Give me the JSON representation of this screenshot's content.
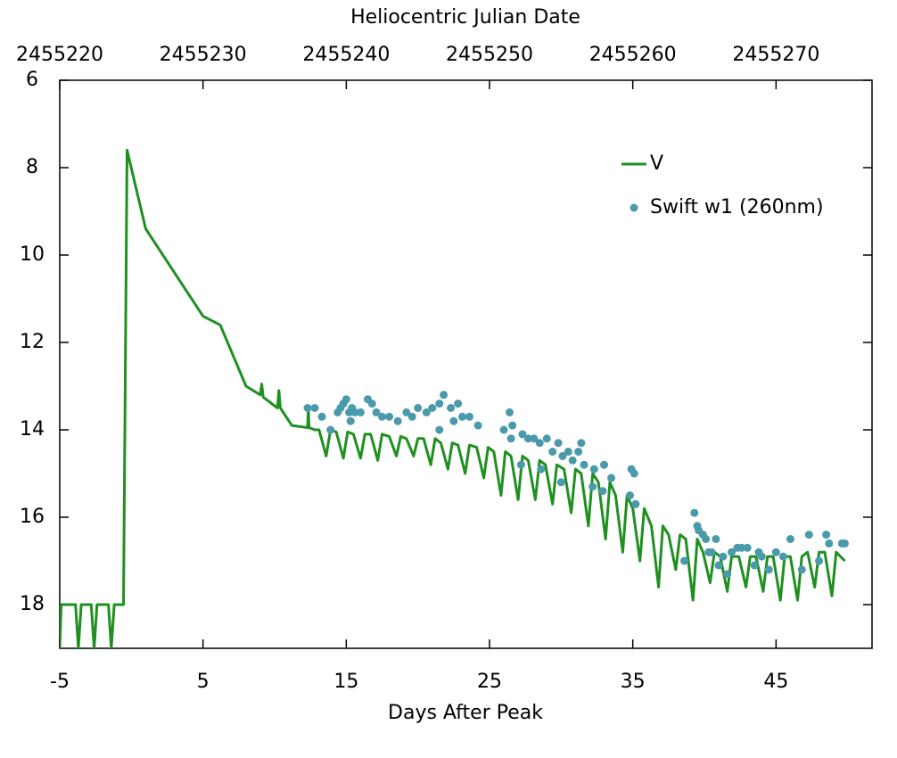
{
  "chart_data": {
    "type": "line",
    "xlabel": "Days After Peak",
    "x2label": "Heliocentric Julian Date",
    "xlim": [
      -5,
      51.7
    ],
    "xticks": [
      -5,
      5,
      15,
      25,
      35,
      45
    ],
    "x2lim": [
      2455220,
      2455276.7
    ],
    "x2ticks": [
      2455220,
      2455230,
      2455240,
      2455250,
      2455260,
      2455270
    ],
    "ylim": [
      6,
      19
    ],
    "yticks": [
      6,
      8,
      10,
      12,
      14,
      16,
      18
    ],
    "y_inverted": true,
    "legend": "upper right",
    "series": [
      {
        "name": "V",
        "type": "line",
        "color": "#1f9020",
        "x": [
          -5,
          -4.9,
          -3.9,
          -3.7,
          -3.5,
          -2.8,
          -2.6,
          -2.4,
          -1.6,
          -1.4,
          -1.2,
          -0.55,
          -0.3,
          1.0,
          5.0,
          6.2,
          8.0,
          9.0,
          9.1,
          9.2,
          10.2,
          10.3,
          10.4,
          11.2,
          12.3,
          12.35,
          12.4,
          12.8,
          13.1,
          13.6,
          13.9,
          14.3,
          14.8,
          15.1,
          15.5,
          16.0,
          16.3,
          16.7,
          17.2,
          17.5,
          18.0,
          18.5,
          18.8,
          19.2,
          19.7,
          20.0,
          20.4,
          20.9,
          21.2,
          21.6,
          22.1,
          22.4,
          22.8,
          23.3,
          23.6,
          24.1,
          24.6,
          24.9,
          25.3,
          25.8,
          26.1,
          26.5,
          27.0,
          27.3,
          27.7,
          28.2,
          28.5,
          28.9,
          29.4,
          29.7,
          30.2,
          30.7,
          31.0,
          31.4,
          31.9,
          32.2,
          32.6,
          33.1,
          33.4,
          33.8,
          34.3,
          34.6,
          35.0,
          35.5,
          35.8,
          36.3,
          36.8,
          37.1,
          37.5,
          38.0,
          38.3,
          38.7,
          39.2,
          39.5,
          39.9,
          40.4,
          40.7,
          41.1,
          41.6,
          41.9,
          42.4,
          42.9,
          43.2,
          43.6,
          44.1,
          44.4,
          44.8,
          45.3,
          45.6,
          46.0,
          46.5,
          46.8,
          47.2,
          47.7,
          48.0,
          48.4,
          48.9,
          49.2,
          49.8
        ],
        "values": [
          19,
          18,
          18,
          19,
          18,
          18,
          19,
          18,
          18,
          19,
          18,
          18,
          7.6,
          9.4,
          11.4,
          11.6,
          13.0,
          13.2,
          12.95,
          13.25,
          13.5,
          13.1,
          13.5,
          13.9,
          13.95,
          13.5,
          13.95,
          14.0,
          14.0,
          14.6,
          14.0,
          14.05,
          14.65,
          14.05,
          14.1,
          14.65,
          14.1,
          14.1,
          14.7,
          14.1,
          14.15,
          14.6,
          14.15,
          14.2,
          14.6,
          14.2,
          14.2,
          14.8,
          14.2,
          14.3,
          14.9,
          14.3,
          14.35,
          15.0,
          14.35,
          14.4,
          15.1,
          14.4,
          14.5,
          15.5,
          14.5,
          14.6,
          15.6,
          14.6,
          14.7,
          15.6,
          14.7,
          14.8,
          15.7,
          14.8,
          14.9,
          15.9,
          14.9,
          15.0,
          16.2,
          15.0,
          15.2,
          16.5,
          15.2,
          15.5,
          16.8,
          15.5,
          15.8,
          17.0,
          15.8,
          16.2,
          17.6,
          16.2,
          16.4,
          17.2,
          16.4,
          16.5,
          17.9,
          16.5,
          16.8,
          17.5,
          16.8,
          16.9,
          17.7,
          16.9,
          16.9,
          17.6,
          16.9,
          16.9,
          17.7,
          16.9,
          16.9,
          17.9,
          16.9,
          16.9,
          17.9,
          16.9,
          16.8,
          17.6,
          16.8,
          16.8,
          17.8,
          16.8,
          17.0
        ]
      },
      {
        "name": "Swift w1 (260nm)",
        "type": "scatter",
        "color": "#4a9aab",
        "x": [
          12.3,
          12.8,
          13.3,
          13.9,
          14.4,
          14.6,
          14.8,
          15.0,
          15.2,
          15.4,
          15.6,
          15.3,
          16.0,
          16.5,
          16.8,
          17.1,
          17.5,
          18.0,
          18.6,
          19.2,
          19.6,
          20.0,
          20.6,
          21.0,
          21.5,
          21.8,
          22.3,
          22.8,
          23.1,
          23.6,
          21.5,
          22.5,
          26.4,
          26.6,
          26.5,
          27.3,
          27.7,
          28.1,
          28.5,
          29.0,
          29.4,
          29.8,
          30.1,
          30.5,
          30.8,
          31.2,
          31.4,
          31.6,
          32.3,
          33.0,
          33.5,
          27.2,
          28.6,
          30.0,
          32.2,
          32.9,
          34.9,
          35.1,
          34.8,
          35.2,
          39.3,
          39.6,
          39.9,
          40.1,
          40.3,
          39.5,
          40.5,
          40.8,
          41.0,
          41.3,
          41.6,
          41.9,
          42.3,
          42.6,
          43.0,
          43.5,
          43.8,
          44.0,
          44.5,
          45.0,
          45.5,
          46.0,
          46.8,
          47.3,
          48.0,
          48.5,
          48.7,
          49.6,
          49.8,
          38.6,
          26.0,
          24.2
        ],
        "values": [
          13.5,
          13.5,
          13.7,
          14.0,
          13.6,
          13.5,
          13.4,
          13.3,
          13.6,
          13.5,
          13.6,
          13.8,
          13.6,
          13.3,
          13.4,
          13.6,
          13.7,
          13.7,
          13.8,
          13.6,
          13.7,
          13.5,
          13.6,
          13.5,
          13.4,
          13.2,
          13.5,
          13.4,
          13.7,
          13.7,
          14.0,
          13.8,
          13.6,
          13.9,
          14.2,
          14.1,
          14.2,
          14.2,
          14.3,
          14.2,
          14.5,
          14.3,
          14.6,
          14.5,
          14.7,
          14.5,
          14.3,
          14.8,
          14.9,
          14.8,
          15.1,
          14.8,
          14.9,
          15.2,
          15.3,
          15.4,
          14.9,
          15.0,
          15.5,
          15.7,
          15.9,
          16.3,
          16.4,
          16.5,
          16.8,
          16.2,
          16.8,
          16.5,
          17.1,
          16.9,
          17.3,
          16.8,
          16.7,
          16.7,
          16.7,
          17.1,
          16.8,
          16.9,
          17.2,
          16.8,
          16.9,
          16.5,
          17.2,
          16.4,
          17.0,
          16.4,
          16.6,
          16.6,
          16.6,
          17.0,
          14.0,
          13.9
        ]
      }
    ]
  }
}
